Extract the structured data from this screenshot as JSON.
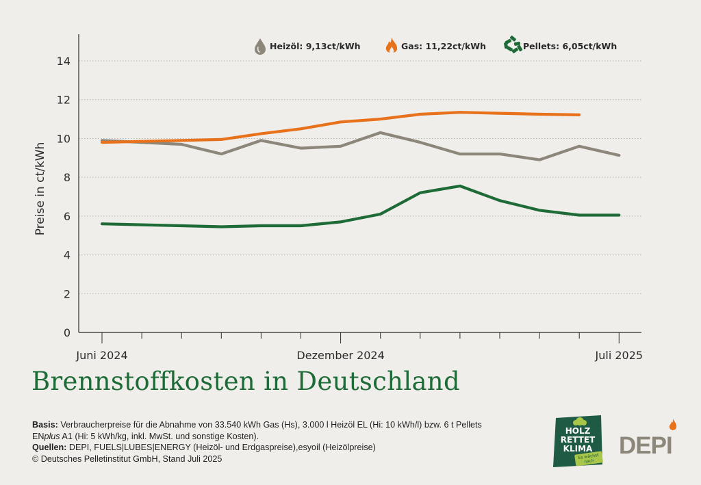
{
  "chart_data": {
    "type": "line",
    "ylabel": "Preise in ct/kWh",
    "ylim": [
      0,
      15.2
    ],
    "yticks": [
      0,
      2,
      4,
      6,
      8,
      10,
      12,
      14
    ],
    "x": [
      "2024-06",
      "2024-07",
      "2024-08",
      "2024-09",
      "2024-10",
      "2024-11",
      "2024-12",
      "2025-01",
      "2025-02",
      "2025-03",
      "2025-04",
      "2025-05",
      "2025-06",
      "2025-07"
    ],
    "xtick_labels": [
      {
        "month": "2024-06",
        "label": "Juni 2024"
      },
      {
        "month": "2024-12",
        "label": "Dezember 2024"
      },
      {
        "month": "2025-07",
        "label": "Juli 2025"
      }
    ],
    "grid": "horizontal-dotted",
    "legend_position": "top",
    "series": [
      {
        "name": "Heizöl",
        "legend": "Heizöl: 9,13ct/kWh",
        "color": "#8c877a",
        "icon": "oil-drop-icon",
        "values": [
          9.9,
          9.8,
          9.7,
          9.2,
          9.9,
          9.5,
          9.6,
          10.3,
          9.8,
          9.2,
          9.2,
          8.9,
          9.6,
          9.13
        ]
      },
      {
        "name": "Gas",
        "legend": "Gas: 11,22ct/kWh",
        "color": "#e8711c",
        "icon": "flame-icon",
        "values": [
          9.8,
          9.85,
          9.9,
          9.95,
          10.25,
          10.5,
          10.85,
          11.0,
          11.25,
          11.35,
          11.3,
          11.25,
          11.22,
          null
        ]
      },
      {
        "name": "Pellets",
        "legend": "Pellets: 6,05ct/kWh",
        "color": "#1e6b38",
        "icon": "pellets-icon",
        "values": [
          5.6,
          5.55,
          5.5,
          5.45,
          5.5,
          5.5,
          5.7,
          6.1,
          7.2,
          7.55,
          6.8,
          6.3,
          6.05,
          6.05
        ]
      }
    ]
  },
  "title": "Brennstoffkosten in Deutschland",
  "notes": {
    "basis_label": "Basis:",
    "basis_text_1": "Verbraucherpreise für die Abnahme von 33.540 kWh Gas (Hs), 3.000 l Heizöl EL (Hi: 10 kWh/l) bzw. 6 t Pellets",
    "basis_text_2a": "EN",
    "basis_text_2b": "plus",
    "basis_text_2c": "A1 (Hi: 5 kWh/kg, inkl. MwSt. und sonstige Kosten).",
    "sources_label": "Quellen:",
    "sources_text": "DEPI, FUELS|LUBES|ENERGY (Heizöl- und Erdgaspreise),esyoil (Heizölpreise)",
    "copyright": "© Deutsches Pelletinstitut GmbH, Stand Juli 2025"
  },
  "badge": {
    "line1": "HOLZ",
    "line2": "RETTET",
    "line3": "KLIMA",
    "tag1": "Es wächst",
    "tag2": "nach",
    "color": "#1e5a44",
    "accent": "#a8c64a"
  },
  "logo": {
    "text": "DEPI",
    "color": "#8c877a",
    "flame_color": "#e8711c"
  }
}
